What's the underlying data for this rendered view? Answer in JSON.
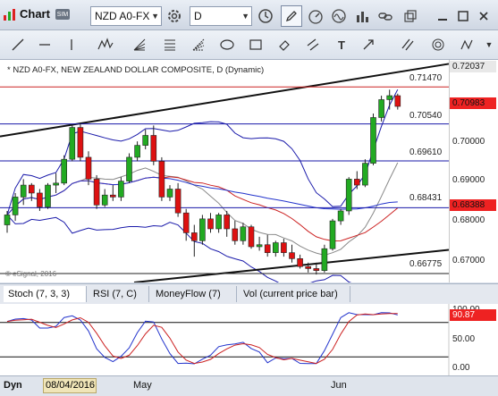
{
  "window": {
    "title": "Chart",
    "symbol_value": "NZD A0-FX",
    "interval_value": "D"
  },
  "chart": {
    "label": "* NZD A0-FX, NEW ZEALAND DOLLAR COMPOSITE, D (Dynamic)",
    "copyright": "© eSignal, 2016",
    "last_price": "0.70983",
    "level_price": "0.68388",
    "top_price": "0.72037",
    "axis_prices": [
      "0.70000",
      "0.69000",
      "0.68000",
      "0.67000"
    ],
    "level_labels": [
      "0.71470",
      "0.70540",
      "0.69610",
      "0.68431",
      "0.66775"
    ]
  },
  "tabs": [
    {
      "label": "Stoch (7, 3, 3)"
    },
    {
      "label": "RSI (7, C)"
    },
    {
      "label": "MoneyFlow (7)"
    },
    {
      "label": "Vol (current price bar)"
    }
  ],
  "indicator": {
    "value": "90.87",
    "axis": [
      "100.00",
      "50.00",
      "0.00"
    ]
  },
  "bottom": {
    "mode": "Dyn",
    "date": "08/04/2016",
    "months": [
      "May",
      "Jun"
    ]
  },
  "colors": {
    "up": "#22aa22",
    "down": "#dd1111",
    "last_price_tag": "#ee2222",
    "level_tag": "#ee2222"
  },
  "chart_data": {
    "type": "candlestick",
    "title": "* NZD A0-FX, NEW ZEALAND DOLLAR COMPOSITE, D (Dynamic)",
    "ylim": [
      0.6655,
      0.7215
    ],
    "x_ticks": [
      "May",
      "Jun"
    ],
    "horizontal_levels": [
      0.7147,
      0.7054,
      0.6961,
      0.68431,
      0.66775
    ],
    "candles": [
      [
        0.68,
        0.6835,
        0.678,
        0.6825
      ],
      [
        0.6825,
        0.688,
        0.681,
        0.687
      ],
      [
        0.687,
        0.6915,
        0.685,
        0.69
      ],
      [
        0.69,
        0.6905,
        0.686,
        0.688
      ],
      [
        0.688,
        0.689,
        0.6835,
        0.6845
      ],
      [
        0.6845,
        0.6905,
        0.684,
        0.69
      ],
      [
        0.69,
        0.693,
        0.688,
        0.6905
      ],
      [
        0.6905,
        0.6975,
        0.69,
        0.6965
      ],
      [
        0.6965,
        0.705,
        0.696,
        0.7045
      ],
      [
        0.7045,
        0.7055,
        0.696,
        0.697
      ],
      [
        0.697,
        0.6985,
        0.69,
        0.6915
      ],
      [
        0.6915,
        0.6925,
        0.684,
        0.685
      ],
      [
        0.685,
        0.689,
        0.6845,
        0.6875
      ],
      [
        0.6875,
        0.69,
        0.686,
        0.687
      ],
      [
        0.687,
        0.692,
        0.686,
        0.691
      ],
      [
        0.691,
        0.698,
        0.6905,
        0.697
      ],
      [
        0.697,
        0.701,
        0.696,
        0.7
      ],
      [
        0.7,
        0.704,
        0.699,
        0.7025
      ],
      [
        0.7025,
        0.705,
        0.695,
        0.696
      ],
      [
        0.696,
        0.697,
        0.686,
        0.687
      ],
      [
        0.687,
        0.69,
        0.686,
        0.689
      ],
      [
        0.689,
        0.6905,
        0.682,
        0.683
      ],
      [
        0.683,
        0.684,
        0.676,
        0.678
      ],
      [
        0.678,
        0.68,
        0.672,
        0.676
      ],
      [
        0.676,
        0.6825,
        0.675,
        0.6815
      ],
      [
        0.6815,
        0.683,
        0.678,
        0.679
      ],
      [
        0.679,
        0.683,
        0.678,
        0.6825
      ],
      [
        0.6825,
        0.6835,
        0.677,
        0.679
      ],
      [
        0.679,
        0.681,
        0.675,
        0.676
      ],
      [
        0.676,
        0.6805,
        0.675,
        0.6795
      ],
      [
        0.6795,
        0.68,
        0.674,
        0.6745
      ],
      [
        0.6745,
        0.677,
        0.6735,
        0.675
      ],
      [
        0.675,
        0.6775,
        0.672,
        0.673
      ],
      [
        0.673,
        0.676,
        0.672,
        0.6755
      ],
      [
        0.6755,
        0.6765,
        0.672,
        0.673
      ],
      [
        0.673,
        0.675,
        0.6705,
        0.6715
      ],
      [
        0.6715,
        0.6725,
        0.669,
        0.6695
      ],
      [
        0.6695,
        0.6705,
        0.668,
        0.669
      ],
      [
        0.669,
        0.6705,
        0.6675,
        0.6685
      ],
      [
        0.6685,
        0.675,
        0.668,
        0.674
      ],
      [
        0.674,
        0.6815,
        0.6735,
        0.681
      ],
      [
        0.681,
        0.684,
        0.68,
        0.6835
      ],
      [
        0.6835,
        0.692,
        0.6825,
        0.6915
      ],
      [
        0.6915,
        0.6935,
        0.689,
        0.69
      ],
      [
        0.69,
        0.6965,
        0.6895,
        0.6955
      ],
      [
        0.6955,
        0.708,
        0.695,
        0.707
      ],
      [
        0.707,
        0.7125,
        0.706,
        0.7115
      ],
      [
        0.7115,
        0.714,
        0.709,
        0.7125
      ],
      [
        0.7125,
        0.713,
        0.709,
        0.7098
      ]
    ]
  }
}
